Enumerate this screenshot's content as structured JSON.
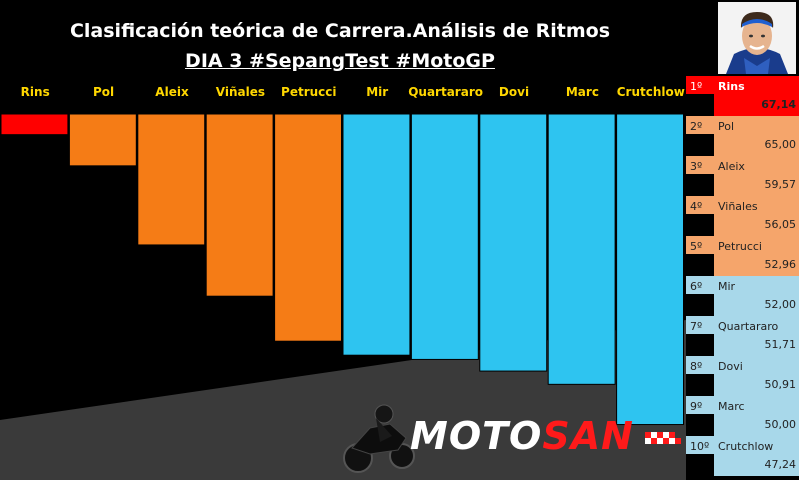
{
  "header": {
    "title": "Clasificación teórica de Carrera.Análisis de Ritmos",
    "subtitle": "DIA 3 #SepangTest #MotoGP"
  },
  "chart_data": {
    "type": "bar",
    "categories": [
      "Rins",
      "Pol",
      "Aleix",
      "Viñales",
      "Petrucci",
      "Mir",
      "Quartararo",
      "Dovi",
      "Marc",
      "Crutchlow"
    ],
    "values": [
      67.14,
      65.0,
      59.57,
      56.05,
      52.96,
      52.0,
      51.71,
      50.91,
      50.0,
      47.24
    ],
    "bar_colors": [
      "#ff0000",
      "#f57c16",
      "#f57c16",
      "#f57c16",
      "#f57c16",
      "#2ec4f0",
      "#2ec4f0",
      "#2ec4f0",
      "#2ec4f0",
      "#2ec4f0"
    ],
    "label_colors": [
      "#ffd700",
      "#ffd700",
      "#ffd700",
      "#ffd700",
      "#ffd700",
      "#ffd700",
      "#ffd700",
      "#ffd700",
      "#ffd700",
      "#ffd700"
    ],
    "ylim": [
      40,
      70
    ],
    "grid": false
  },
  "ranking": [
    {
      "pos": "1º",
      "name": "Rins",
      "value": "67,14"
    },
    {
      "pos": "2º",
      "name": "Pol",
      "value": "65,00"
    },
    {
      "pos": "3º",
      "name": "Aleix",
      "value": "59,57"
    },
    {
      "pos": "4º",
      "name": "Viñales",
      "value": "56,05"
    },
    {
      "pos": "5º",
      "name": "Petrucci",
      "value": "52,96"
    },
    {
      "pos": "6º",
      "name": "Mir",
      "value": "52,00"
    },
    {
      "pos": "7º",
      "name": "Quartararo",
      "value": "51,71"
    },
    {
      "pos": "8º",
      "name": "Dovi",
      "value": "50,91"
    },
    {
      "pos": "9º",
      "name": "Marc",
      "value": "50,00"
    },
    {
      "pos": "10º",
      "name": "Crutchlow",
      "value": "47,24"
    }
  ],
  "ranking_colors": {
    "first": "#ff0000",
    "orange": "#f5a56b",
    "blue": "#a8d8ea"
  },
  "logo": {
    "text_part1": "MOTO",
    "text_part2": "SAN",
    "color1": "#ffffff",
    "color2": "#ff1a1a"
  },
  "photo": {
    "icon": "rider-portrait-icon"
  }
}
